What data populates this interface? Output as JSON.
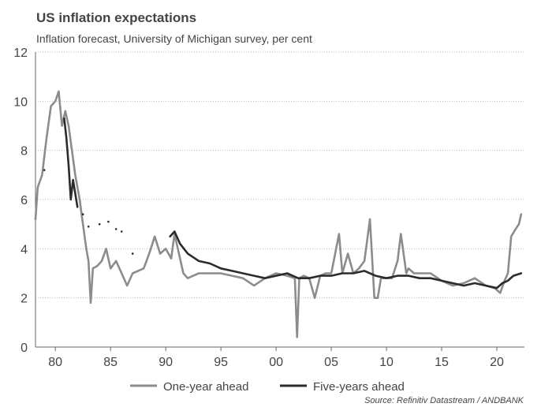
{
  "chart_data": {
    "type": "line",
    "title": "US inflation expectations",
    "subtitle": "Inflation forecast, University of Michigan survey, per cent",
    "source": "Source: Refinitiv Datastream / ANDBANK",
    "xlim": [
      1978.2,
      2022.5
    ],
    "ylim": [
      0,
      12
    ],
    "yticks": [
      0,
      2,
      4,
      6,
      8,
      10,
      12
    ],
    "xticks": [
      {
        "value": 1980,
        "label": "80"
      },
      {
        "value": 1985,
        "label": "85"
      },
      {
        "value": 1990,
        "label": "90"
      },
      {
        "value": 1995,
        "label": "95"
      },
      {
        "value": 2000,
        "label": "00"
      },
      {
        "value": 2005,
        "label": "05"
      },
      {
        "value": 2010,
        "label": "10"
      },
      {
        "value": 2015,
        "label": "15"
      },
      {
        "value": 2020,
        "label": "20"
      }
    ],
    "grid": true,
    "legend": "bottom",
    "series": [
      {
        "name": "One-year ahead",
        "color": "#8c8c8c",
        "x": [
          1978.2,
          1978.4,
          1978.8,
          1979.2,
          1979.6,
          1980.0,
          1980.3,
          1980.6,
          1980.9,
          1981.2,
          1981.5,
          1981.8,
          1982.2,
          1982.5,
          1982.8,
          1983.0,
          1983.2,
          1983.4,
          1983.8,
          1984.2,
          1984.6,
          1985.0,
          1985.5,
          1986.0,
          1986.5,
          1987.0,
          1987.5,
          1988.0,
          1988.5,
          1989.0,
          1989.5,
          1990.0,
          1990.5,
          1990.8,
          1991.2,
          1991.6,
          1992.0,
          1992.5,
          1993.0,
          1994.0,
          1995.0,
          1996.0,
          1997.0,
          1998.0,
          1999.0,
          2000.0,
          2001.0,
          2001.7,
          2001.9,
          2002.1,
          2002.5,
          2003.0,
          2003.5,
          2004.0,
          2004.5,
          2005.0,
          2005.7,
          2006.0,
          2006.5,
          2007.0,
          2007.5,
          2008.0,
          2008.5,
          2008.9,
          2009.2,
          2009.5,
          2010.0,
          2010.5,
          2011.0,
          2011.3,
          2011.8,
          2012.0,
          2012.5,
          2013.0,
          2014.0,
          2015.0,
          2016.0,
          2017.0,
          2018.0,
          2019.0,
          2019.8,
          2020.3,
          2020.7,
          2021.0,
          2021.3,
          2021.7,
          2022.0,
          2022.2
        ],
        "values": [
          5.2,
          6.5,
          7.0,
          8.5,
          9.8,
          10.0,
          10.4,
          9.0,
          9.6,
          9.0,
          8.0,
          7.0,
          6.0,
          5.0,
          4.0,
          3.5,
          1.8,
          3.2,
          3.3,
          3.5,
          4.0,
          3.2,
          3.5,
          3.0,
          2.5,
          3.0,
          3.1,
          3.2,
          3.8,
          4.5,
          3.8,
          4.0,
          3.6,
          4.6,
          3.8,
          3.0,
          2.8,
          2.9,
          3.0,
          3.0,
          3.0,
          2.9,
          2.8,
          2.5,
          2.8,
          3.0,
          2.9,
          2.8,
          0.4,
          2.8,
          2.9,
          2.8,
          2.0,
          2.9,
          3.0,
          3.0,
          4.6,
          3.0,
          3.8,
          3.0,
          3.2,
          3.5,
          5.2,
          2.0,
          2.0,
          2.8,
          2.8,
          2.8,
          3.5,
          4.6,
          3.0,
          3.2,
          3.0,
          3.0,
          3.0,
          2.7,
          2.5,
          2.6,
          2.8,
          2.5,
          2.4,
          2.2,
          2.7,
          3.0,
          4.5,
          4.8,
          5.0,
          5.4
        ]
      },
      {
        "name": "Five-years ahead",
        "color": "#2b2b2b",
        "x": [
          1979.0,
          1980.0,
          1980.8,
          1981.0,
          1981.2,
          1981.4,
          1981.6,
          1982.0,
          1982.2,
          1982.5,
          1982.7,
          1983.0,
          1983.5,
          1984.0,
          1984.4,
          1984.8,
          1985.2,
          1985.5,
          1985.8,
          1986.0,
          1986.5,
          1987.0,
          1988.0,
          1990.4,
          1990.8,
          1991.3,
          1992.0,
          1993.0,
          1994.0,
          1995.0,
          1996.0,
          1997.0,
          1998.0,
          1999.0,
          2000.0,
          2001.0,
          2002.0,
          2003.0,
          2004.0,
          2005.0,
          2006.0,
          2007.0,
          2008.0,
          2009.0,
          2010.0,
          2011.0,
          2012.0,
          2013.0,
          2014.0,
          2015.0,
          2016.0,
          2017.0,
          2018.0,
          2019.0,
          2020.0,
          2020.5,
          2021.0,
          2021.5,
          2022.2
        ],
        "values": [
          7.2,
          null,
          9.3,
          8.5,
          7.4,
          6.0,
          6.8,
          5.7,
          null,
          5.4,
          null,
          4.9,
          null,
          5.0,
          null,
          5.1,
          null,
          4.8,
          null,
          4.7,
          null,
          3.8,
          null,
          4.5,
          4.7,
          4.2,
          3.8,
          3.5,
          3.4,
          3.2,
          3.1,
          3.0,
          2.9,
          2.8,
          2.9,
          3.0,
          2.8,
          2.8,
          2.9,
          2.9,
          3.0,
          3.0,
          3.1,
          2.9,
          2.8,
          2.9,
          2.9,
          2.8,
          2.8,
          2.7,
          2.6,
          2.5,
          2.6,
          2.5,
          2.4,
          2.6,
          2.7,
          2.9,
          3.0
        ]
      }
    ]
  }
}
